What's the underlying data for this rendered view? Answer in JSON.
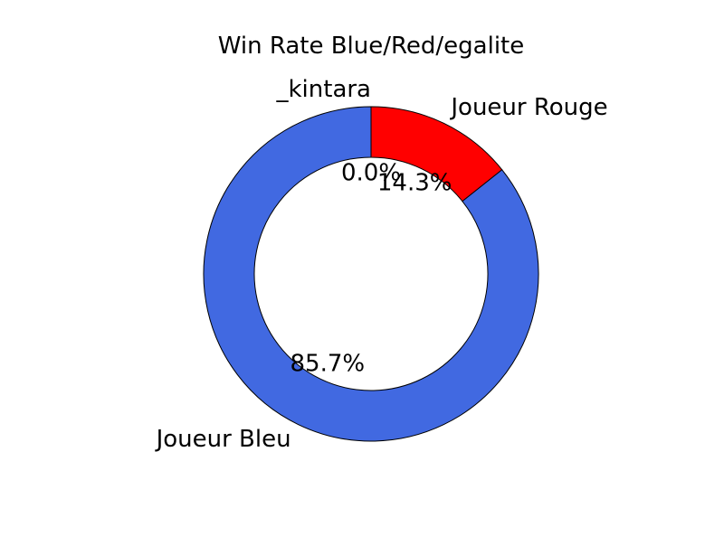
{
  "chart_data": {
    "type": "pie",
    "style": "donut",
    "title": "Win Rate Blue/Red/egalite",
    "start_angle_deg": 90,
    "direction": "clockwise",
    "slices": [
      {
        "label": "_kintara",
        "value": 0.0,
        "pct_label": "0.0%",
        "color": "#ffffff"
      },
      {
        "label": "Joueur Rouge",
        "value": 14.3,
        "pct_label": "14.3%",
        "color": "#ff0000"
      },
      {
        "label": "Joueur Bleu",
        "value": 85.7,
        "pct_label": "85.7%",
        "color": "#4169e1"
      }
    ],
    "edge_color": "#000000"
  }
}
